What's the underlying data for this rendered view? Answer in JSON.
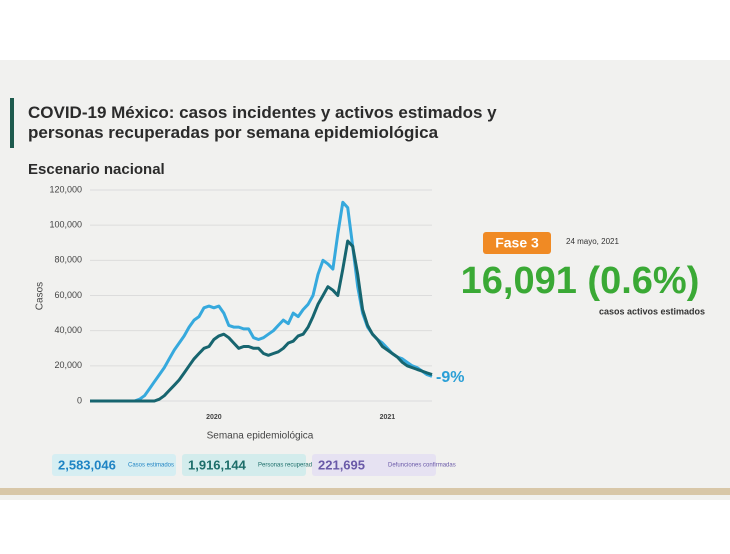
{
  "chart_data": {
    "type": "line",
    "title": "COVID-19 México: casos incidentes y activos estimados y personas recuperadas por semana epidemiológica",
    "subtitle": "Escenario nacional",
    "y_label": "Casos",
    "x_label": "Semana epidemiológica",
    "annotation": "-9%",
    "categories": [
      null,
      null,
      null,
      null,
      null,
      null,
      null,
      null,
      null,
      null,
      null,
      null,
      null,
      null,
      null,
      null,
      null,
      null,
      null,
      null,
      null,
      null,
      null,
      null,
      null,
      "2020",
      null,
      null,
      null,
      null,
      null,
      null,
      null,
      null,
      null,
      null,
      null,
      null,
      null,
      null,
      null,
      null,
      null,
      null,
      null,
      null,
      null,
      null,
      null,
      null,
      null,
      null,
      null,
      null,
      null,
      null,
      null,
      null,
      null,
      null,
      "2021",
      null,
      null,
      null,
      null,
      null,
      null,
      null,
      null,
      null
    ],
    "series": [
      {
        "color": "#36a9dd",
        "values": [
          0,
          0,
          0,
          0,
          0,
          0,
          0,
          0,
          0,
          0,
          1000,
          3000,
          7000,
          11000,
          15000,
          19000,
          24000,
          29000,
          33000,
          37000,
          42000,
          46000,
          48000,
          53000,
          54000,
          53000,
          54000,
          50000,
          43000,
          42000,
          42000,
          41000,
          41000,
          36000,
          35000,
          36000,
          38000,
          40000,
          43000,
          46000,
          44000,
          50000,
          48000,
          52000,
          55000,
          60000,
          72000,
          80000,
          78000,
          75000,
          95000,
          113000,
          110000,
          88000,
          65000,
          50000,
          42000,
          38000,
          35000,
          33000,
          30000,
          27000,
          25000,
          24000,
          22000,
          20000,
          19000,
          17000,
          15000,
          14000
        ]
      },
      {
        "color": "#17656f",
        "values": [
          0,
          0,
          0,
          0,
          0,
          0,
          0,
          0,
          0,
          0,
          0,
          0,
          0,
          0,
          1000,
          3000,
          6000,
          9000,
          12000,
          16000,
          20000,
          24000,
          27000,
          30000,
          31000,
          35000,
          37000,
          38000,
          36000,
          33000,
          30000,
          31000,
          31000,
          30000,
          30000,
          27000,
          26000,
          27000,
          28000,
          30000,
          33000,
          34000,
          37000,
          38000,
          42000,
          48000,
          55000,
          60000,
          65000,
          63000,
          60000,
          75000,
          91000,
          88000,
          72000,
          52000,
          43000,
          38000,
          35000,
          31000,
          29000,
          27000,
          25000,
          22000,
          20000,
          19000,
          18000,
          17000,
          16000,
          15000
        ]
      }
    ],
    "ylim": [
      0,
      120000
    ],
    "yticks": [
      0,
      {
        "value": 20000,
        "label": "20,000"
      },
      {
        "value": 40000,
        "label": "40,000"
      },
      {
        "value": 60000,
        "label": "60,000"
      },
      {
        "value": 80000,
        "label": "80,000"
      },
      {
        "value": 100000,
        "label": "100,000"
      },
      {
        "value": 120000,
        "label": "120,000"
      }
    ],
    "grid": true
  },
  "panel": {
    "phase": "Fase 3",
    "date": "24 mayo, 2021",
    "active": "16,091 (0.6%)",
    "active_label": "casos activos estimados"
  },
  "totals": [
    {
      "value": "2,583,046",
      "label": "Casos estimados"
    },
    {
      "value": "1,916,144",
      "label": "Personas recuperadas"
    },
    {
      "value": "221,695",
      "label": "Defunciones confirmadas"
    }
  ]
}
